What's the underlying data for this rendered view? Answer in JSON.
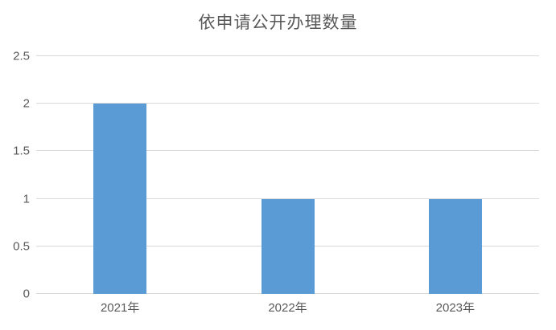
{
  "chart_data": {
    "type": "bar",
    "title": "依申请公开办理数量",
    "categories": [
      "2021年",
      "2022年",
      "2023年"
    ],
    "values": [
      2,
      1,
      1
    ],
    "xlabel": "",
    "ylabel": "",
    "ylim": [
      0,
      2.5
    ],
    "y_ticks": [
      0,
      0.5,
      1,
      1.5,
      2,
      2.5
    ],
    "y_tick_labels": [
      "0",
      "0.5",
      "1",
      "1.5",
      "2",
      "2.5"
    ],
    "grid": "horizontal",
    "legend": "none"
  },
  "colors": {
    "bar": "#5B9BD5",
    "gridline": "#D9D9D9",
    "text": "#595959",
    "title": "#595959",
    "background": "#FFFFFF"
  }
}
